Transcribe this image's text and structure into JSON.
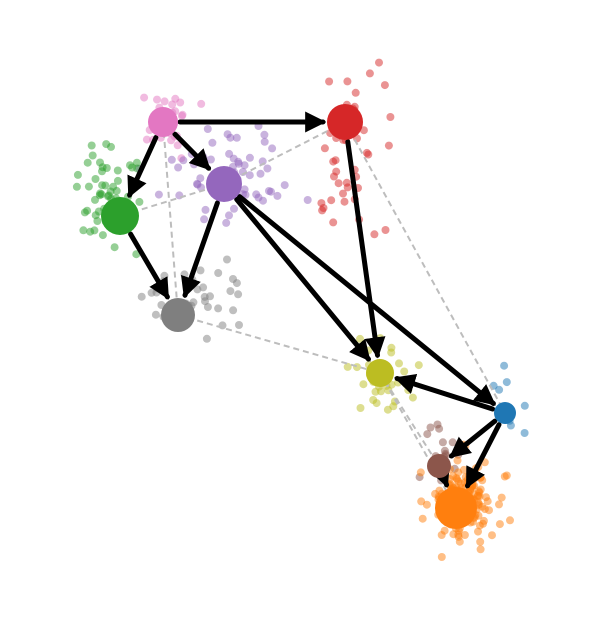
{
  "diagram": {
    "type": "cluster-transition-graph",
    "node_colors": {
      "pink": "#e377c2",
      "red": "#d62728",
      "purple": "#9467bd",
      "green": "#2ca02c",
      "gray": "#7f7f7f",
      "olive": "#bcbd22",
      "blue": "#1f77b4",
      "brown": "#8c564b",
      "orange": "#ff7f0e"
    },
    "directed_edges": [
      [
        "pink",
        "red"
      ],
      [
        "pink",
        "purple"
      ],
      [
        "pink",
        "green"
      ],
      [
        "red",
        "olive"
      ],
      [
        "purple",
        "gray"
      ],
      [
        "purple",
        "olive"
      ],
      [
        "purple",
        "blue"
      ],
      [
        "green",
        "gray"
      ],
      [
        "blue",
        "olive"
      ],
      [
        "blue",
        "brown"
      ],
      [
        "blue",
        "orange"
      ],
      [
        "brown",
        "orange"
      ]
    ],
    "background_links": [
      [
        "red",
        "purple"
      ],
      [
        "red",
        "blue"
      ],
      [
        "purple",
        "green"
      ],
      [
        "gray",
        "olive"
      ],
      [
        "olive",
        "brown"
      ],
      [
        "olive",
        "orange"
      ],
      [
        "pink",
        "gray"
      ]
    ],
    "edge_color": "#000000",
    "background_link_color": "#bdbdbd"
  }
}
